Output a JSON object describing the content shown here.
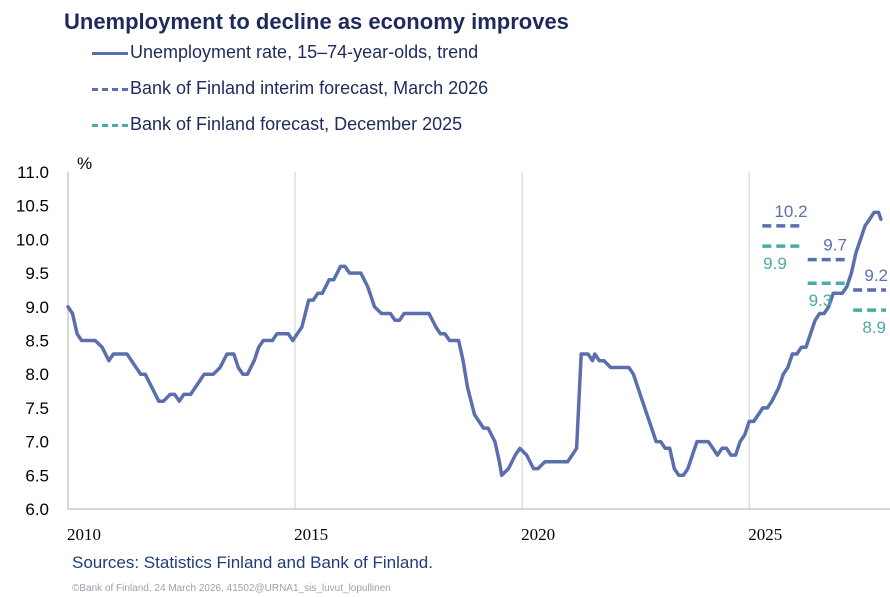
{
  "title": "Unemployment to decline as economy improves",
  "legend": [
    {
      "label": "Unemployment rate, 15–74-year-olds, trend",
      "style": "solid",
      "color": "#5b6fae"
    },
    {
      "label": "Bank of Finland interim forecast, March 2026",
      "style": "dashed",
      "color": "#5b6fae"
    },
    {
      "label": "Bank of Finland forecast, December 2025",
      "style": "dashed",
      "color": "#4aaca6"
    }
  ],
  "sources": "Sources: Statistics Finland and Bank of Finland.",
  "copyright": "©Bank of Finland, 24 March 2026, 41502@URNA1_sis_luvut_lopullinen",
  "chart_data": {
    "type": "line",
    "ylabel": "%",
    "xlabel": "",
    "ylim": [
      6.0,
      11.0
    ],
    "xlim": [
      2010.0,
      2028.1
    ],
    "yticks": [
      "6.0",
      "6.5",
      "7.0",
      "7.5",
      "8.0",
      "8.5",
      "9.0",
      "9.5",
      "10.0",
      "10.5",
      "11.0"
    ],
    "xticks": [
      "2010",
      "2015",
      "2020",
      "2025"
    ],
    "grid": "vertical",
    "legend_position": "top-left",
    "series": [
      {
        "name": "Unemployment rate, 15–74-year-olds, trend",
        "color": "#5b6fae",
        "style": "solid",
        "points": [
          [
            2010.0,
            9.0
          ],
          [
            2010.1,
            8.9
          ],
          [
            2010.2,
            8.6
          ],
          [
            2010.3,
            8.5
          ],
          [
            2010.5,
            8.5
          ],
          [
            2010.6,
            8.5
          ],
          [
            2010.75,
            8.4
          ],
          [
            2010.9,
            8.2
          ],
          [
            2011.0,
            8.3
          ],
          [
            2011.1,
            8.3
          ],
          [
            2011.3,
            8.3
          ],
          [
            2011.5,
            8.1
          ],
          [
            2011.6,
            8.0
          ],
          [
            2011.7,
            8.0
          ],
          [
            2011.85,
            7.8
          ],
          [
            2012.0,
            7.6
          ],
          [
            2012.1,
            7.6
          ],
          [
            2012.25,
            7.7
          ],
          [
            2012.35,
            7.7
          ],
          [
            2012.45,
            7.6
          ],
          [
            2012.55,
            7.7
          ],
          [
            2012.7,
            7.7
          ],
          [
            2012.9,
            7.9
          ],
          [
            2013.0,
            8.0
          ],
          [
            2013.2,
            8.0
          ],
          [
            2013.35,
            8.1
          ],
          [
            2013.5,
            8.3
          ],
          [
            2013.6,
            8.3
          ],
          [
            2013.65,
            8.3
          ],
          [
            2013.75,
            8.1
          ],
          [
            2013.85,
            8.0
          ],
          [
            2013.95,
            8.0
          ],
          [
            2014.1,
            8.2
          ],
          [
            2014.2,
            8.4
          ],
          [
            2014.3,
            8.5
          ],
          [
            2014.4,
            8.5
          ],
          [
            2014.5,
            8.5
          ],
          [
            2014.6,
            8.6
          ],
          [
            2014.75,
            8.6
          ],
          [
            2014.85,
            8.6
          ],
          [
            2014.95,
            8.5
          ],
          [
            2015.05,
            8.6
          ],
          [
            2015.15,
            8.7
          ],
          [
            2015.3,
            9.1
          ],
          [
            2015.4,
            9.1
          ],
          [
            2015.5,
            9.2
          ],
          [
            2015.6,
            9.2
          ],
          [
            2015.75,
            9.4
          ],
          [
            2015.85,
            9.4
          ],
          [
            2016.0,
            9.6
          ],
          [
            2016.1,
            9.6
          ],
          [
            2016.2,
            9.5
          ],
          [
            2016.3,
            9.5
          ],
          [
            2016.45,
            9.5
          ],
          [
            2016.6,
            9.3
          ],
          [
            2016.75,
            9.0
          ],
          [
            2016.9,
            8.9
          ],
          [
            2017.0,
            8.9
          ],
          [
            2017.1,
            8.9
          ],
          [
            2017.2,
            8.8
          ],
          [
            2017.3,
            8.8
          ],
          [
            2017.4,
            8.9
          ],
          [
            2017.6,
            8.9
          ],
          [
            2017.8,
            8.9
          ],
          [
            2017.95,
            8.9
          ],
          [
            2018.1,
            8.7
          ],
          [
            2018.2,
            8.6
          ],
          [
            2018.3,
            8.6
          ],
          [
            2018.4,
            8.5
          ],
          [
            2018.5,
            8.5
          ],
          [
            2018.6,
            8.5
          ],
          [
            2018.7,
            8.2
          ],
          [
            2018.8,
            7.8
          ],
          [
            2018.95,
            7.4
          ],
          [
            2019.05,
            7.3
          ],
          [
            2019.15,
            7.2
          ],
          [
            2019.25,
            7.2
          ],
          [
            2019.4,
            7.0
          ],
          [
            2019.5,
            6.7
          ],
          [
            2019.55,
            6.5
          ],
          [
            2019.7,
            6.6
          ],
          [
            2019.85,
            6.8
          ],
          [
            2019.95,
            6.9
          ],
          [
            2020.1,
            6.8
          ],
          [
            2020.25,
            6.6
          ],
          [
            2020.35,
            6.6
          ],
          [
            2020.5,
            6.7
          ],
          [
            2020.6,
            6.7
          ],
          [
            2020.85,
            6.7
          ],
          [
            2021.0,
            6.7
          ],
          [
            2021.1,
            6.8
          ],
          [
            2021.2,
            6.9
          ],
          [
            2021.3,
            8.3
          ],
          [
            2021.45,
            8.3
          ],
          [
            2021.55,
            8.2
          ],
          [
            2021.6,
            8.3
          ],
          [
            2021.7,
            8.2
          ],
          [
            2021.8,
            8.2
          ],
          [
            2021.95,
            8.1
          ],
          [
            2022.2,
            8.1
          ],
          [
            2022.35,
            8.1
          ],
          [
            2022.45,
            8.0
          ],
          [
            2022.6,
            7.7
          ],
          [
            2022.75,
            7.4
          ],
          [
            2022.85,
            7.2
          ],
          [
            2022.95,
            7.0
          ],
          [
            2023.05,
            7.0
          ],
          [
            2023.15,
            6.9
          ],
          [
            2023.25,
            6.9
          ],
          [
            2023.35,
            6.6
          ],
          [
            2023.45,
            6.5
          ],
          [
            2023.55,
            6.5
          ],
          [
            2023.65,
            6.6
          ],
          [
            2023.75,
            6.8
          ],
          [
            2023.85,
            7.0
          ],
          [
            2024.0,
            7.0
          ],
          [
            2024.1,
            7.0
          ],
          [
            2024.2,
            6.9
          ],
          [
            2024.3,
            6.8
          ],
          [
            2024.4,
            6.9
          ],
          [
            2024.5,
            6.9
          ],
          [
            2024.6,
            6.8
          ],
          [
            2024.7,
            6.8
          ],
          [
            2024.8,
            7.0
          ],
          [
            2024.9,
            7.1
          ],
          [
            2025.0,
            7.3
          ],
          [
            2025.1,
            7.3
          ],
          [
            2025.2,
            7.4
          ],
          [
            2025.3,
            7.5
          ],
          [
            2025.4,
            7.5
          ],
          [
            2025.5,
            7.6
          ],
          [
            2025.65,
            7.8
          ],
          [
            2025.75,
            8.0
          ],
          [
            2025.85,
            8.1
          ],
          [
            2025.95,
            8.3
          ],
          [
            2026.05,
            8.3
          ],
          [
            2026.15,
            8.4
          ],
          [
            2026.25,
            8.4
          ],
          [
            2026.35,
            8.6
          ],
          [
            2026.45,
            8.8
          ],
          [
            2026.55,
            8.9
          ],
          [
            2026.65,
            8.9
          ],
          [
            2026.75,
            9.0
          ],
          [
            2026.85,
            9.2
          ],
          [
            2026.95,
            9.2
          ],
          [
            2027.05,
            9.2
          ],
          [
            2027.15,
            9.3
          ],
          [
            2027.25,
            9.5
          ],
          [
            2027.35,
            9.8
          ],
          [
            2027.45,
            10.0
          ],
          [
            2027.55,
            10.2
          ],
          [
            2027.65,
            10.3
          ],
          [
            2027.75,
            10.4
          ],
          [
            2027.85,
            10.4
          ],
          [
            2027.9,
            10.3
          ]
        ]
      },
      {
        "name": "Bank of Finland interim forecast, March 2026",
        "color": "#5b6fae",
        "style": "dashed",
        "segments": [
          {
            "x": [
              2025.2,
              2026.2
            ],
            "y": 10.2,
            "label": "10.2"
          },
          {
            "x": [
              2026.2,
              2027.2
            ],
            "y": 9.7,
            "label": "9.7"
          },
          {
            "x": [
              2027.2,
              2028.1
            ],
            "y": 9.25,
            "label": "9.2"
          }
        ]
      },
      {
        "name": "Bank of Finland forecast, December 2025",
        "color": "#4aaca6",
        "style": "dashed",
        "segments": [
          {
            "x": [
              2025.2,
              2026.2
            ],
            "y": 9.9,
            "label": "9.9"
          },
          {
            "x": [
              2026.2,
              2027.2
            ],
            "y": 9.35,
            "label": "9.3"
          },
          {
            "x": [
              2027.2,
              2028.1
            ],
            "y": 8.95,
            "label": "8.9"
          }
        ]
      }
    ]
  }
}
